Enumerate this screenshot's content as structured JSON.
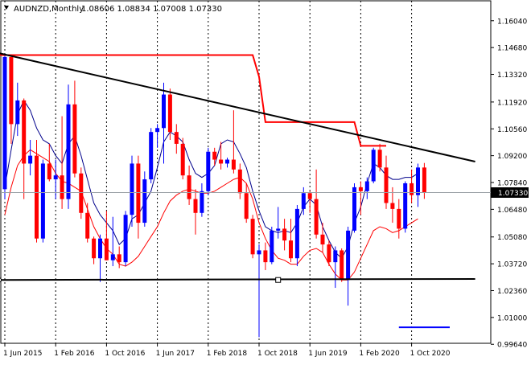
{
  "header": {
    "symbol_label": "AUDNZD,Monthly",
    "ohlc_label": "1.08606 1.08834 1.07008 1.07330"
  },
  "price_badge": "1.07330",
  "colors": {
    "bull": "#0000ff",
    "bear": "#ff0000",
    "background": "#ffffff",
    "frame": "#000000",
    "grid": "#000000",
    "ma_fast": "#00008b",
    "ma_slow": "#ff0000",
    "resistance": "#ff0000",
    "trendline": "#000000",
    "support": "#000000",
    "badge_bg": "#000000",
    "badge_text": "#ffffff"
  },
  "chart_data": {
    "type": "candlestick",
    "title": "AUDNZD,Monthly",
    "ylim": [
      0.9969,
      1.1705
    ],
    "y_ticks": [
      "1.16040",
      "1.14680",
      "1.13320",
      "1.11920",
      "1.10560",
      "1.09200",
      "1.07840",
      "1.06480",
      "1.05080",
      "1.03720",
      "1.02360",
      "1.01000",
      "0.99640"
    ],
    "x_ticks": [
      "1 Jun 2015",
      "1 Feb 2016",
      "1 Oct 2016",
      "1 Jun 2017",
      "1 Feb 2018",
      "1 Oct 2018",
      "1 Jun 2019",
      "1 Feb 2020",
      "1 Oct 2020"
    ],
    "x_tick_index": [
      0,
      8,
      16,
      24,
      32,
      40,
      48,
      56,
      64
    ],
    "x_axis_unit": "month index from Jun 2015",
    "period_dividers": [
      0,
      8,
      16,
      24,
      32,
      40,
      48,
      56,
      64
    ],
    "candles": [
      [
        1.075,
        1.143,
        1.07,
        1.142
      ],
      [
        1.142,
        1.143,
        1.098,
        1.108
      ],
      [
        1.108,
        1.129,
        1.102,
        1.12
      ],
      [
        1.12,
        1.121,
        1.07,
        1.088
      ],
      [
        1.088,
        1.1,
        1.082,
        1.092
      ],
      [
        1.092,
        1.1,
        1.048,
        1.05
      ],
      [
        1.05,
        1.09,
        1.048,
        1.088
      ],
      [
        1.088,
        1.098,
        1.079,
        1.08
      ],
      [
        1.08,
        1.09,
        1.07,
        1.082
      ],
      [
        1.082,
        1.112,
        1.065,
        1.07
      ],
      [
        1.07,
        1.128,
        1.065,
        1.118
      ],
      [
        1.118,
        1.13,
        1.081,
        1.083
      ],
      [
        1.083,
        1.086,
        1.06,
        1.063
      ],
      [
        1.063,
        1.068,
        1.048,
        1.05
      ],
      [
        1.05,
        1.051,
        1.037,
        1.04
      ],
      [
        1.04,
        1.052,
        1.028,
        1.05
      ],
      [
        1.05,
        1.064,
        1.039,
        1.039
      ],
      [
        1.039,
        1.061,
        1.036,
        1.042
      ],
      [
        1.042,
        1.046,
        1.035,
        1.038
      ],
      [
        1.038,
        1.064,
        1.036,
        1.062
      ],
      [
        1.062,
        1.092,
        1.056,
        1.088
      ],
      [
        1.088,
        1.092,
        1.05,
        1.058
      ],
      [
        1.058,
        1.084,
        1.056,
        1.08
      ],
      [
        1.08,
        1.106,
        1.078,
        1.104
      ],
      [
        1.104,
        1.108,
        1.096,
        1.106
      ],
      [
        1.106,
        1.129,
        1.088,
        1.123
      ],
      [
        1.123,
        1.126,
        1.1,
        1.104
      ],
      [
        1.104,
        1.108,
        1.093,
        1.098
      ],
      [
        1.098,
        1.101,
        1.08,
        1.082
      ],
      [
        1.082,
        1.087,
        1.067,
        1.07
      ],
      [
        1.07,
        1.075,
        1.052,
        1.063
      ],
      [
        1.063,
        1.078,
        1.061,
        1.074
      ],
      [
        1.074,
        1.096,
        1.072,
        1.094
      ],
      [
        1.094,
        1.096,
        1.087,
        1.09
      ],
      [
        1.09,
        1.099,
        1.085,
        1.088
      ],
      [
        1.088,
        1.091,
        1.086,
        1.09
      ],
      [
        1.09,
        1.115,
        1.083,
        1.085
      ],
      [
        1.085,
        1.088,
        1.07,
        1.073
      ],
      [
        1.073,
        1.078,
        1.058,
        1.06
      ],
      [
        1.06,
        1.062,
        1.04,
        1.042
      ],
      [
        1.042,
        1.047,
        1.0,
        1.044
      ],
      [
        1.044,
        1.048,
        1.034,
        1.038
      ],
      [
        1.038,
        1.056,
        1.037,
        1.054
      ],
      [
        1.054,
        1.066,
        1.05,
        1.055
      ],
      [
        1.055,
        1.06,
        1.044,
        1.049
      ],
      [
        1.049,
        1.06,
        1.038,
        1.04
      ],
      [
        1.04,
        1.067,
        1.036,
        1.065
      ],
      [
        1.065,
        1.076,
        1.062,
        1.073
      ],
      [
        1.073,
        1.074,
        1.063,
        1.07
      ],
      [
        1.07,
        1.085,
        1.05,
        1.052
      ],
      [
        1.052,
        1.058,
        1.043,
        1.047
      ],
      [
        1.047,
        1.049,
        1.036,
        1.038
      ],
      [
        1.038,
        1.046,
        1.025,
        1.044
      ],
      [
        1.044,
        1.045,
        1.028,
        1.029
      ],
      [
        1.029,
        1.056,
        1.016,
        1.054
      ],
      [
        1.054,
        1.078,
        1.053,
        1.076
      ],
      [
        1.076,
        1.079,
        1.062,
        1.074
      ],
      [
        1.074,
        1.081,
        1.07,
        1.079
      ],
      [
        1.079,
        1.096,
        1.078,
        1.095
      ],
      [
        1.095,
        1.098,
        1.084,
        1.086
      ],
      [
        1.086,
        1.092,
        1.065,
        1.068
      ],
      [
        1.068,
        1.076,
        1.058,
        1.065
      ],
      [
        1.065,
        1.07,
        1.05,
        1.055
      ],
      [
        1.055,
        1.079,
        1.053,
        1.078
      ],
      [
        1.078,
        1.085,
        1.068,
        1.072
      ],
      [
        1.072,
        1.088,
        1.066,
        1.086
      ],
      [
        1.086,
        1.0883,
        1.0701,
        1.0733
      ]
    ],
    "ma_fast": [
      [
        0,
        1.076
      ],
      [
        1,
        1.095
      ],
      [
        2,
        1.113
      ],
      [
        3,
        1.12
      ],
      [
        4,
        1.115
      ],
      [
        5,
        1.106
      ],
      [
        6,
        1.1
      ],
      [
        7,
        1.098
      ],
      [
        8,
        1.092
      ],
      [
        9,
        1.088
      ],
      [
        10,
        1.098
      ],
      [
        11,
        1.102
      ],
      [
        12,
        1.092
      ],
      [
        13,
        1.08
      ],
      [
        14,
        1.068
      ],
      [
        15,
        1.062
      ],
      [
        16,
        1.058
      ],
      [
        17,
        1.054
      ],
      [
        18,
        1.047
      ],
      [
        19,
        1.05
      ],
      [
        20,
        1.06
      ],
      [
        21,
        1.062
      ],
      [
        22,
        1.068
      ],
      [
        23,
        1.074
      ],
      [
        24,
        1.086
      ],
      [
        25,
        1.099
      ],
      [
        26,
        1.104
      ],
      [
        27,
        1.102
      ],
      [
        28,
        1.099
      ],
      [
        29,
        1.09
      ],
      [
        30,
        1.083
      ],
      [
        31,
        1.081
      ],
      [
        32,
        1.083
      ],
      [
        33,
        1.087
      ],
      [
        34,
        1.098
      ],
      [
        35,
        1.1
      ],
      [
        36,
        1.099
      ],
      [
        37,
        1.093
      ],
      [
        38,
        1.086
      ],
      [
        39,
        1.074
      ],
      [
        40,
        1.064
      ],
      [
        41,
        1.056
      ],
      [
        42,
        1.054
      ],
      [
        43,
        1.053
      ],
      [
        44,
        1.054
      ],
      [
        45,
        1.053
      ],
      [
        46,
        1.058
      ],
      [
        47,
        1.066
      ],
      [
        48,
        1.07
      ],
      [
        49,
        1.067
      ],
      [
        50,
        1.056
      ],
      [
        51,
        1.049
      ],
      [
        52,
        1.043
      ],
      [
        53,
        1.04
      ],
      [
        54,
        1.046
      ],
      [
        55,
        1.058
      ],
      [
        56,
        1.066
      ],
      [
        57,
        1.078
      ],
      [
        58,
        1.088
      ],
      [
        59,
        1.086
      ],
      [
        60,
        1.082
      ],
      [
        61,
        1.08
      ],
      [
        62,
        1.08
      ],
      [
        63,
        1.081
      ],
      [
        64,
        1.081
      ],
      [
        65,
        1.083
      ]
    ],
    "ma_slow": [
      [
        0,
        1.062
      ],
      [
        1,
        1.076
      ],
      [
        2,
        1.087
      ],
      [
        3,
        1.092
      ],
      [
        4,
        1.095
      ],
      [
        5,
        1.093
      ],
      [
        6,
        1.091
      ],
      [
        7,
        1.089
      ],
      [
        8,
        1.083
      ],
      [
        9,
        1.079
      ],
      [
        10,
        1.078
      ],
      [
        11,
        1.076
      ],
      [
        12,
        1.074
      ],
      [
        13,
        1.065
      ],
      [
        14,
        1.056
      ],
      [
        15,
        1.05
      ],
      [
        16,
        1.045
      ],
      [
        17,
        1.042
      ],
      [
        18,
        1.037
      ],
      [
        19,
        1.036
      ],
      [
        20,
        1.038
      ],
      [
        21,
        1.041
      ],
      [
        22,
        1.046
      ],
      [
        23,
        1.051
      ],
      [
        24,
        1.056
      ],
      [
        25,
        1.063
      ],
      [
        26,
        1.069
      ],
      [
        27,
        1.072
      ],
      [
        28,
        1.074
      ],
      [
        29,
        1.075
      ],
      [
        30,
        1.074
      ],
      [
        31,
        1.073
      ],
      [
        32,
        1.073
      ],
      [
        33,
        1.074
      ],
      [
        34,
        1.076
      ],
      [
        35,
        1.078
      ],
      [
        36,
        1.08
      ],
      [
        37,
        1.081
      ],
      [
        38,
        1.078
      ],
      [
        39,
        1.07
      ],
      [
        40,
        1.058
      ],
      [
        41,
        1.05
      ],
      [
        42,
        1.044
      ],
      [
        43,
        1.04
      ],
      [
        44,
        1.039
      ],
      [
        45,
        1.037
      ],
      [
        46,
        1.037
      ],
      [
        47,
        1.041
      ],
      [
        48,
        1.044
      ],
      [
        49,
        1.045
      ],
      [
        50,
        1.043
      ],
      [
        51,
        1.037
      ],
      [
        52,
        1.032
      ],
      [
        53,
        1.029
      ],
      [
        54,
        1.029
      ],
      [
        55,
        1.033
      ],
      [
        56,
        1.04
      ],
      [
        57,
        1.047
      ],
      [
        58,
        1.054
      ],
      [
        59,
        1.056
      ],
      [
        60,
        1.055
      ],
      [
        61,
        1.053
      ],
      [
        62,
        1.054
      ],
      [
        63,
        1.056
      ],
      [
        64,
        1.058
      ],
      [
        65,
        1.06
      ]
    ],
    "resistance_line": [
      [
        -1,
        1.143
      ],
      [
        39,
        1.143
      ],
      [
        40,
        1.132
      ],
      [
        41,
        1.109
      ],
      [
        55,
        1.109
      ],
      [
        56,
        1.097
      ],
      [
        60,
        1.097
      ]
    ],
    "trendline": [
      [
        -1,
        1.144
      ],
      [
        74,
        1.089
      ]
    ],
    "support_line": [
      [
        -1,
        1.029
      ],
      [
        74,
        1.0295
      ]
    ],
    "support_marker": [
      43,
      1.029
    ],
    "sub_segment": [
      [
        62,
        1.005
      ],
      [
        70,
        1.005
      ]
    ],
    "current_price": 1.0733
  }
}
